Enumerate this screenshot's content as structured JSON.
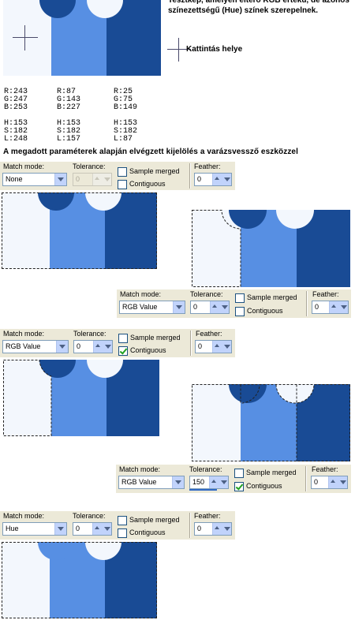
{
  "description": "Tesztkép, amelyen eltérő RGB értékű, de azonos színezettségű (Hue) színek szerepelnek.",
  "legend": {
    "text": "Kattintás helye",
    "icon": "crosshair-icon"
  },
  "colors": {
    "light": "#f3f7fd",
    "mid": "#578fe3",
    "dark": "#194b95"
  },
  "values": [
    {
      "r": "R:243",
      "g": "G:247",
      "b": "B:253",
      "h": "H:153",
      "s": "S:182",
      "l": "L:248"
    },
    {
      "r": "R:87",
      "g": "G:143",
      "b": "B:227",
      "h": "H:153",
      "s": "S:182",
      "l": "L:157"
    },
    {
      "r": "R:25",
      "g": "G:75",
      "b": "B:149",
      "h": "H:153",
      "s": "S:182",
      "l": "L:87"
    }
  ],
  "caption": "A megadott paraméterek alapján elvégzett kijelölés a varázsvessző eszközzel",
  "labels": {
    "match_mode": "Match mode:",
    "tolerance": "Tolerance:",
    "sample_merged": "Sample merged",
    "contiguous": "Contiguous",
    "feather": "Feather:"
  },
  "toolbars": [
    {
      "match_mode": "None",
      "tolerance": "0",
      "tolerance_disabled": true,
      "sample_merged": false,
      "contiguous": false,
      "feather": "0"
    },
    {
      "match_mode": "RGB Value",
      "tolerance": "0",
      "sample_merged": false,
      "contiguous": false,
      "feather": "0"
    },
    {
      "match_mode": "RGB Value",
      "tolerance": "0",
      "sample_merged": false,
      "contiguous": true,
      "feather": "0"
    },
    {
      "match_mode": "RGB Value",
      "tolerance": "150",
      "sample_merged": false,
      "contiguous": true,
      "feather": "0"
    },
    {
      "match_mode": "Hue",
      "tolerance": "0",
      "sample_merged": false,
      "contiguous": false,
      "feather": "0"
    }
  ]
}
